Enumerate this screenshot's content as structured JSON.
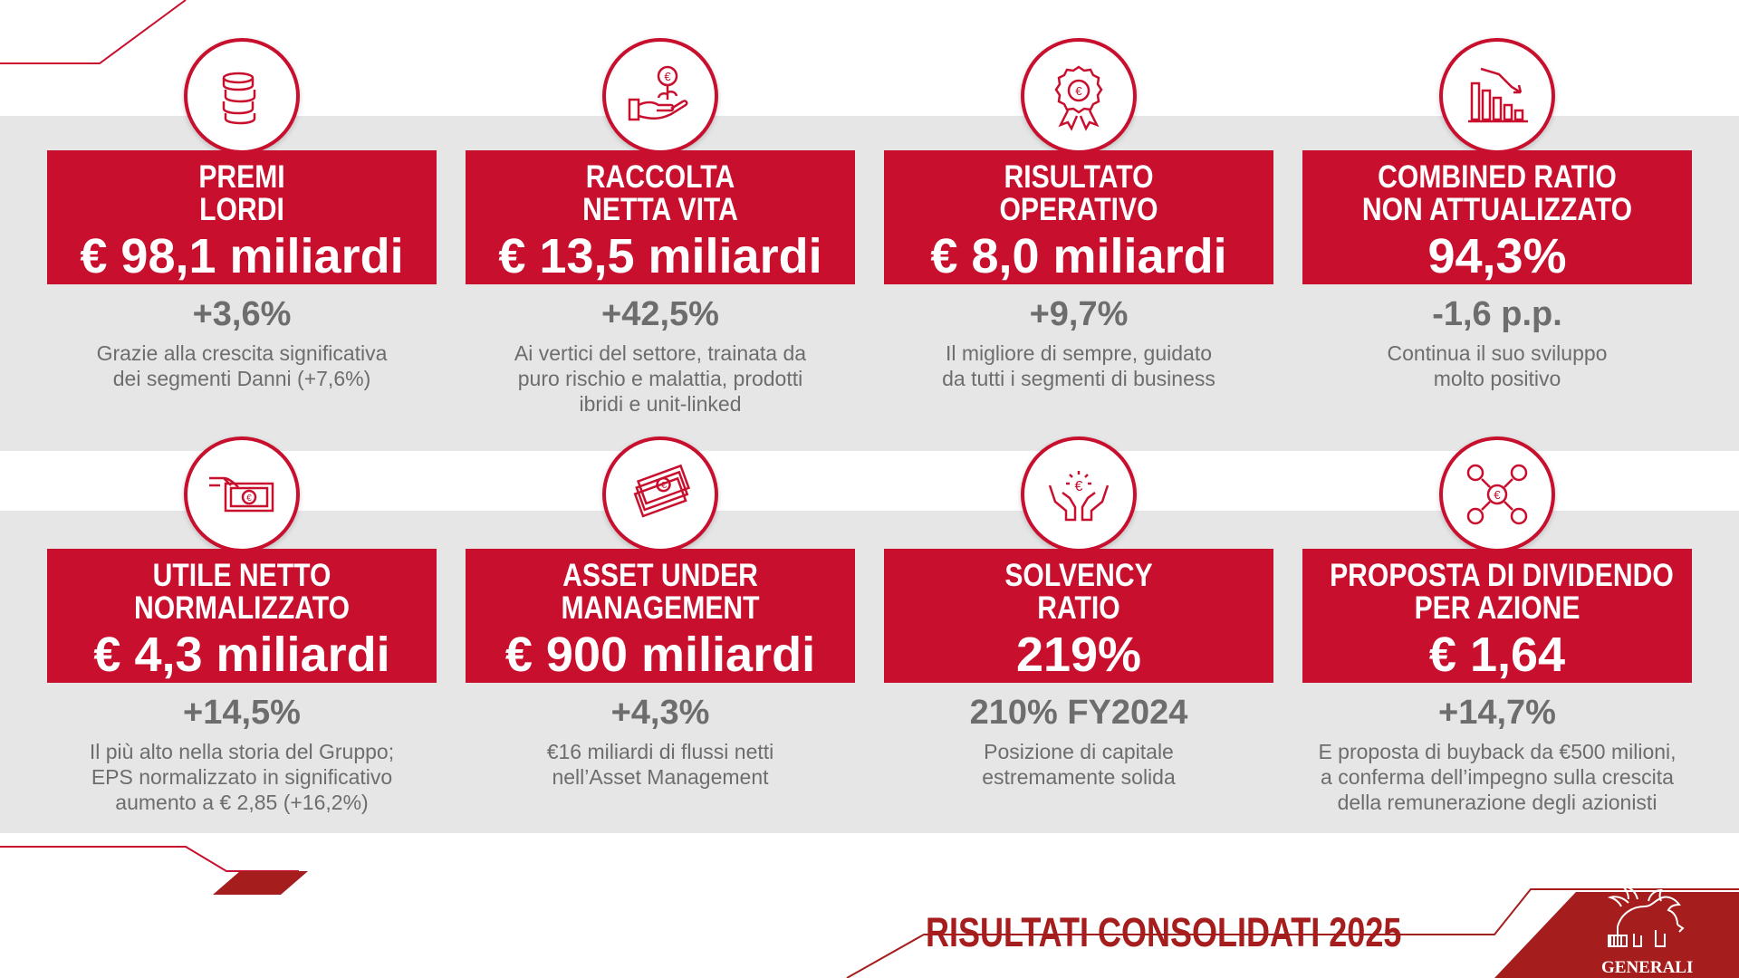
{
  "colors": {
    "brand_red": "#c8102e",
    "dark_red": "#a51d1d",
    "band_gray": "#e6e6e6",
    "text_gray": "#6d6d6d"
  },
  "cards": [
    {
      "icon": "coins-stack-icon",
      "title1": "PREMI",
      "title2": "LORDI",
      "value": "€ 98,1 miliardi",
      "change": "+3,6%",
      "desc1": "Grazie alla crescita significativa",
      "desc2": "dei segmenti Danni (+7,6%)",
      "desc3": ""
    },
    {
      "icon": "hand-euro-plant-icon",
      "title1": "RACCOLTA",
      "title2": "NETTA VITA",
      "value": "€ 13,5 miliardi",
      "change": "+42,5%",
      "desc1": "Ai vertici del settore, trainata da",
      "desc2": "puro rischio e malattia, prodotti",
      "desc3": "ibridi e unit-linked"
    },
    {
      "icon": "euro-award-ribbon-icon",
      "title1": "RISULTATO",
      "title2": "OPERATIVO",
      "value": "€ 8,0 miliardi",
      "change": "+9,7%",
      "desc1": "Il migliore di sempre, guidato",
      "desc2": "da tutti i segmenti di business",
      "desc3": ""
    },
    {
      "icon": "declining-bar-chart-icon",
      "title1": "COMBINED RATIO",
      "title2": "NON ATTUALIZZATO",
      "value": "94,3%",
      "change": "-1,6 p.p.",
      "desc1": "Continua il suo sviluppo",
      "desc2": "molto positivo",
      "desc3": ""
    },
    {
      "icon": "hand-euro-banknote-icon",
      "title1": "UTILE NETTO",
      "title2": "NORMALIZZATO",
      "value": "€ 4,3 miliardi",
      "change": "+14,5%",
      "desc1": "Il più alto nella storia del Gruppo;",
      "desc2": "EPS normalizzato in significativo",
      "desc3": "aumento a € 2,85 (+16,2%)"
    },
    {
      "icon": "banknotes-stack-icon",
      "title1": "ASSET UNDER",
      "title2": "MANAGEMENT",
      "value": "€ 900 miliardi",
      "change": "+4,3%",
      "desc1": "€16 miliardi di flussi netti",
      "desc2": "nell’Asset Management",
      "desc3": ""
    },
    {
      "icon": "hands-euro-icon",
      "title1": "SOLVENCY",
      "title2": "RATIO",
      "value": "219%",
      "change": "210% FY2024",
      "desc1": "Posizione di capitale",
      "desc2": "estremamente solida",
      "desc3": ""
    },
    {
      "icon": "euro-network-people-icon",
      "title1": "PROPOSTA DI DIVIDENDO",
      "title2": "PER AZIONE",
      "value": "€ 1,64",
      "change": "+14,7%",
      "desc1": "E proposta di buyback da €500 milioni,",
      "desc2": "a conferma dell’impegno sulla crescita",
      "desc3": "della remunerazione degli azionisti"
    }
  ],
  "footer": {
    "title": "RISULTATI CONSOLIDATI 2025",
    "logo_text": "GENERALI"
  }
}
